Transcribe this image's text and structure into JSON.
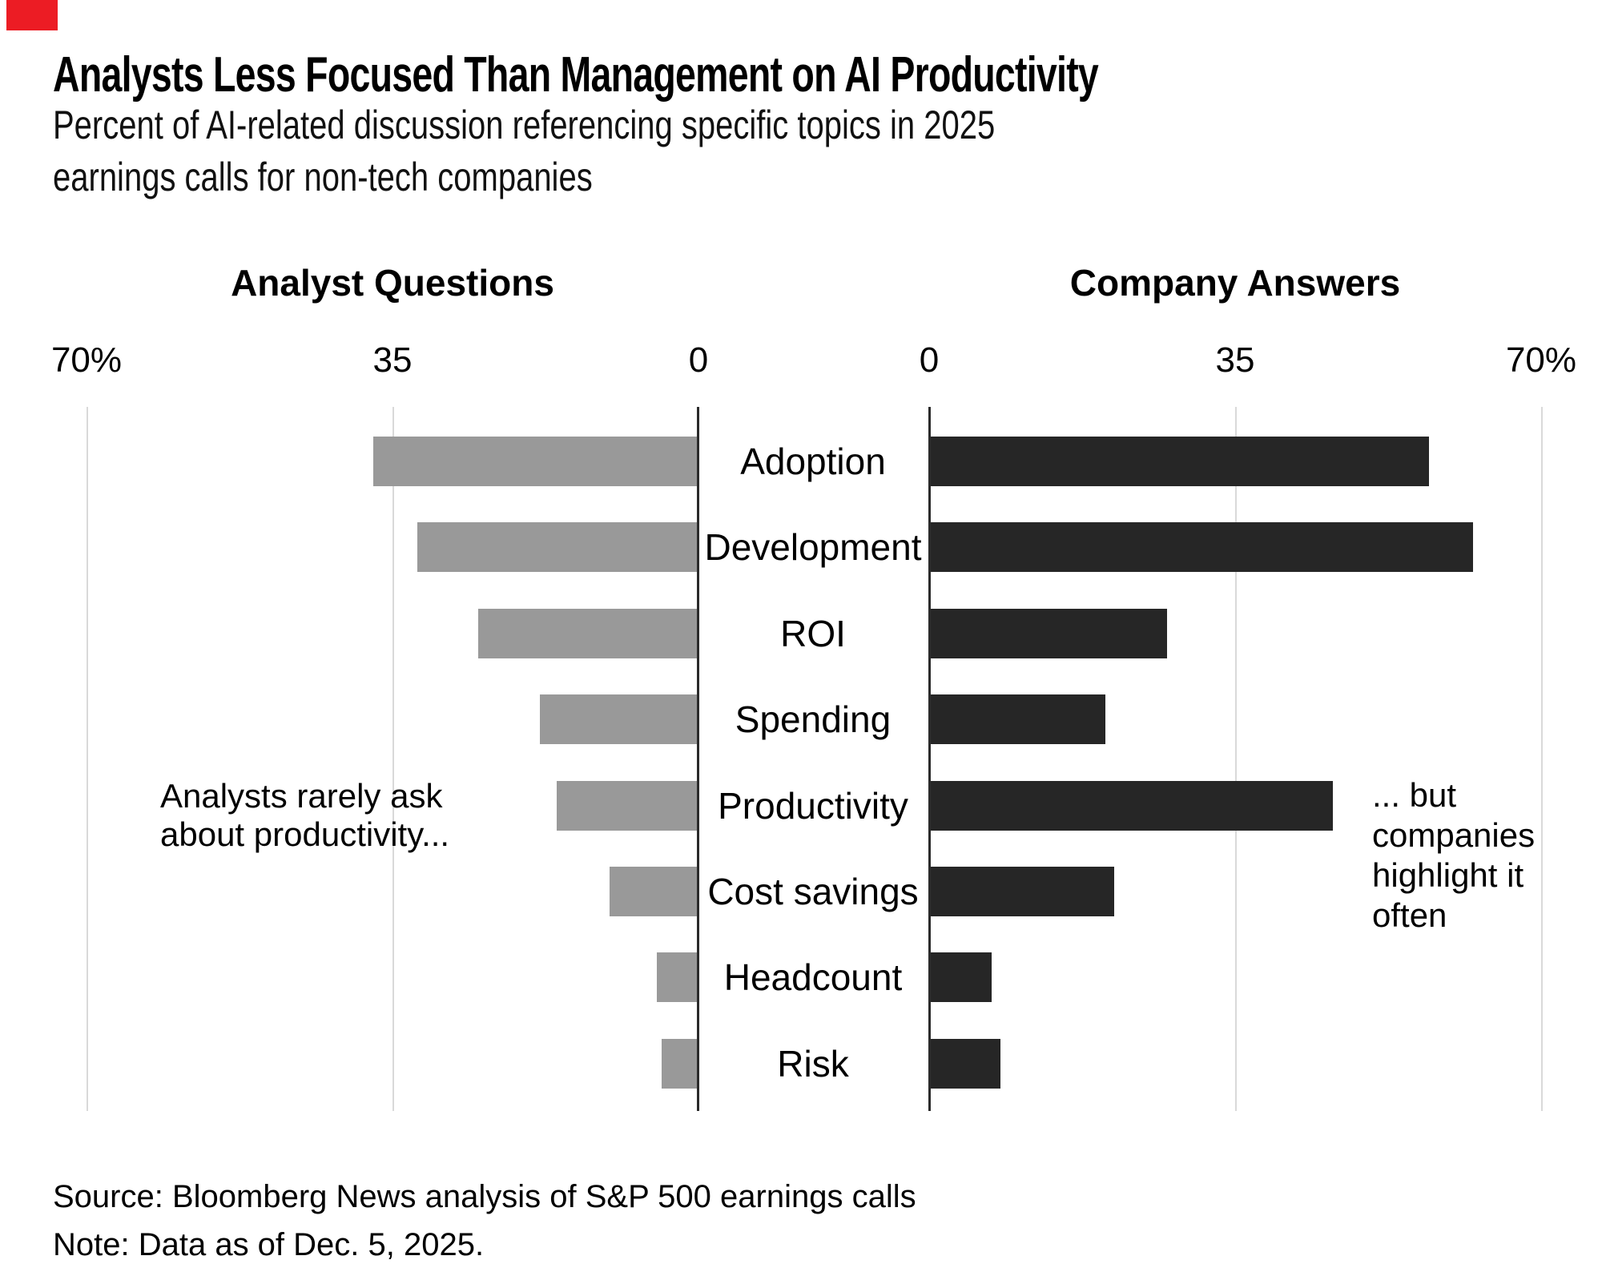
{
  "title": "Analysts Less Focused Than Management on AI Productivity",
  "subtitle_line1": "Percent of AI-related discussion referencing specific topics in 2025",
  "subtitle_line2": "earnings calls for non-tech companies",
  "left_header": "Analyst Questions",
  "right_header": "Company Answers",
  "annotations": {
    "left": [
      "Analysts rarely ask",
      "about productivity..."
    ],
    "right": [
      "... but",
      "companies",
      "highlight it",
      "often"
    ]
  },
  "source": "Source: Bloomberg News analysis of S&P 500 earnings calls",
  "note": "Note: Data as of Dec. 5, 2025.",
  "colors": {
    "analyst_bar": "#999999",
    "company_bar": "#262626",
    "gridline": "#d9d9d9",
    "axis_line": "#2b2b2b",
    "corner_marker": "#ec1c24"
  },
  "chart_data": {
    "type": "bar",
    "orientation": "diverging-horizontal",
    "title": "Analysts Less Focused Than Management on AI Productivity",
    "subtitle": "Percent of AI-related discussion referencing specific topics in 2025 earnings calls for non-tech companies",
    "categories": [
      "Adoption",
      "Development",
      "ROI",
      "Spending",
      "Productivity",
      "Cost savings",
      "Headcount",
      "Risk"
    ],
    "series": [
      {
        "name": "Analyst Questions",
        "side": "left",
        "values": [
          37,
          32,
          25,
          18,
          16,
          10,
          4.6,
          4
        ]
      },
      {
        "name": "Company Answers",
        "side": "right",
        "values": [
          57,
          62,
          27,
          20,
          46,
          21,
          7,
          8
        ]
      }
    ],
    "unit": "percent",
    "xlim": [
      0,
      70
    ],
    "axis_ticks": [
      "70%",
      "35",
      "0",
      "0",
      "35",
      "70%"
    ],
    "tick_values_left": [
      70,
      35,
      0
    ],
    "tick_values_right": [
      0,
      35,
      70
    ],
    "grid": true,
    "legend_position": "column-headers"
  }
}
